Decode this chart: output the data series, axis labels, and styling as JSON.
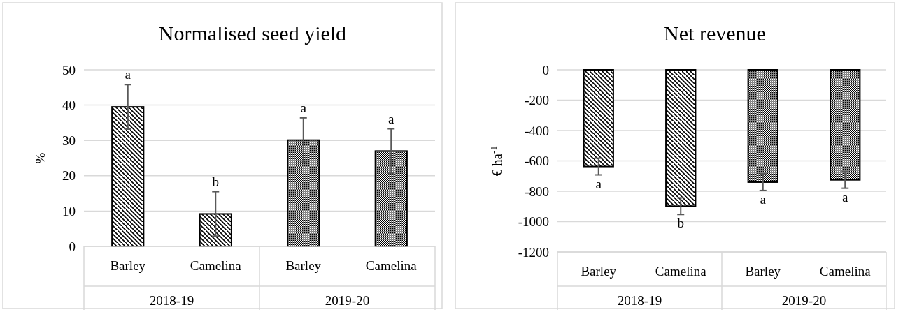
{
  "chart_data": [
    {
      "type": "bar",
      "title": "Normalised seed yield",
      "ylabel": "%",
      "categories": [
        "Barley",
        "Camelina",
        "Barley",
        "Camelina"
      ],
      "values": [
        39.5,
        9.2,
        30.1,
        27.0
      ],
      "errors": [
        6.3,
        6.3,
        6.3,
        6.3
      ],
      "colors": [
        "#000000",
        "#000000",
        "#000000",
        "#000000"
      ],
      "ylim": [
        0,
        50
      ],
      "yticks": [
        0,
        10,
        20,
        30,
        40,
        50
      ],
      "grid": "y",
      "annotations": [
        "a",
        "b",
        "a",
        "a",
        "2018-19",
        "2019-20"
      ]
    },
    {
      "type": "bar",
      "title": "Net revenue",
      "ylabel": "€ ha$^{-1}$",
      "categories": [
        "Barley",
        "Camelina",
        "Barley",
        "Camelina"
      ],
      "values": [
        -637,
        -898,
        -740,
        -725
      ],
      "errors": [
        55,
        55,
        55,
        55
      ],
      "colors": [
        "#000000",
        "#000000",
        "#000000",
        "#000000"
      ],
      "ylim": [
        -1200,
        0
      ],
      "yticks": [
        -1200,
        -1000,
        -800,
        -600,
        -400,
        -200,
        0
      ],
      "grid": "y",
      "annotations": [
        "a",
        "b",
        "a",
        "a",
        "2018-19",
        "2019-20"
      ]
    }
  ]
}
